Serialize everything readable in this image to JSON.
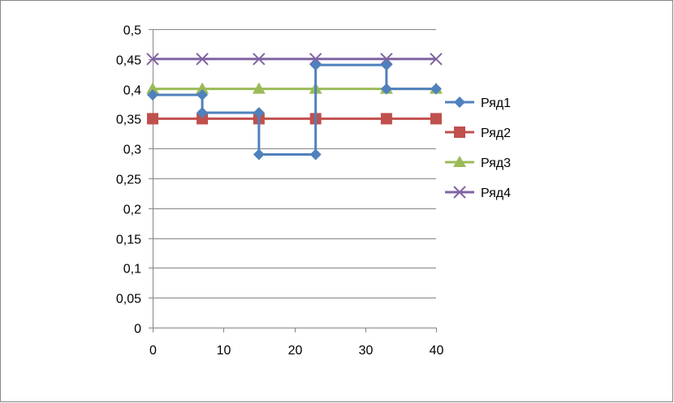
{
  "chart_data": {
    "type": "scatter",
    "title": "",
    "xlabel": "",
    "ylabel": "",
    "xlim": [
      0,
      40
    ],
    "ylim": [
      0,
      0.5
    ],
    "x_ticks": [
      0,
      10,
      20,
      30,
      40
    ],
    "x_tick_labels": [
      "0",
      "10",
      "20",
      "30",
      "40"
    ],
    "y_ticks": [
      0,
      0.05,
      0.1,
      0.15,
      0.2,
      0.25,
      0.3,
      0.35,
      0.4,
      0.45,
      0.5
    ],
    "y_tick_labels": [
      "0",
      "0,05",
      "0,1",
      "0,15",
      "0,2",
      "0,25",
      "0,3",
      "0,35",
      "0,4",
      "0,45",
      "0,5"
    ],
    "grid": "horizontal",
    "legend_position": "right",
    "series": [
      {
        "name": "Ряд1",
        "color": "#4F81BD",
        "marker": "diamond",
        "points": [
          [
            0,
            0.39
          ],
          [
            7,
            0.39
          ],
          [
            7,
            0.36
          ],
          [
            15,
            0.36
          ],
          [
            15,
            0.29
          ],
          [
            23,
            0.29
          ],
          [
            23,
            0.44
          ],
          [
            33,
            0.44
          ],
          [
            33,
            0.4
          ],
          [
            40,
            0.4
          ]
        ]
      },
      {
        "name": "Ряд2",
        "color": "#C0504D",
        "marker": "square",
        "points": [
          [
            0,
            0.35
          ],
          [
            7,
            0.35
          ],
          [
            15,
            0.35
          ],
          [
            23,
            0.35
          ],
          [
            33,
            0.35
          ],
          [
            40,
            0.35
          ]
        ]
      },
      {
        "name": "Ряд3",
        "color": "#9BBB59",
        "marker": "triangle",
        "points": [
          [
            0,
            0.4
          ],
          [
            7,
            0.4
          ],
          [
            15,
            0.4
          ],
          [
            23,
            0.4
          ],
          [
            33,
            0.4
          ],
          [
            40,
            0.4
          ]
        ]
      },
      {
        "name": "Ряд4",
        "color": "#8064A2",
        "marker": "x",
        "points": [
          [
            0,
            0.45
          ],
          [
            7,
            0.45
          ],
          [
            15,
            0.45
          ],
          [
            23,
            0.45
          ],
          [
            33,
            0.45
          ],
          [
            40,
            0.45
          ]
        ]
      }
    ]
  }
}
